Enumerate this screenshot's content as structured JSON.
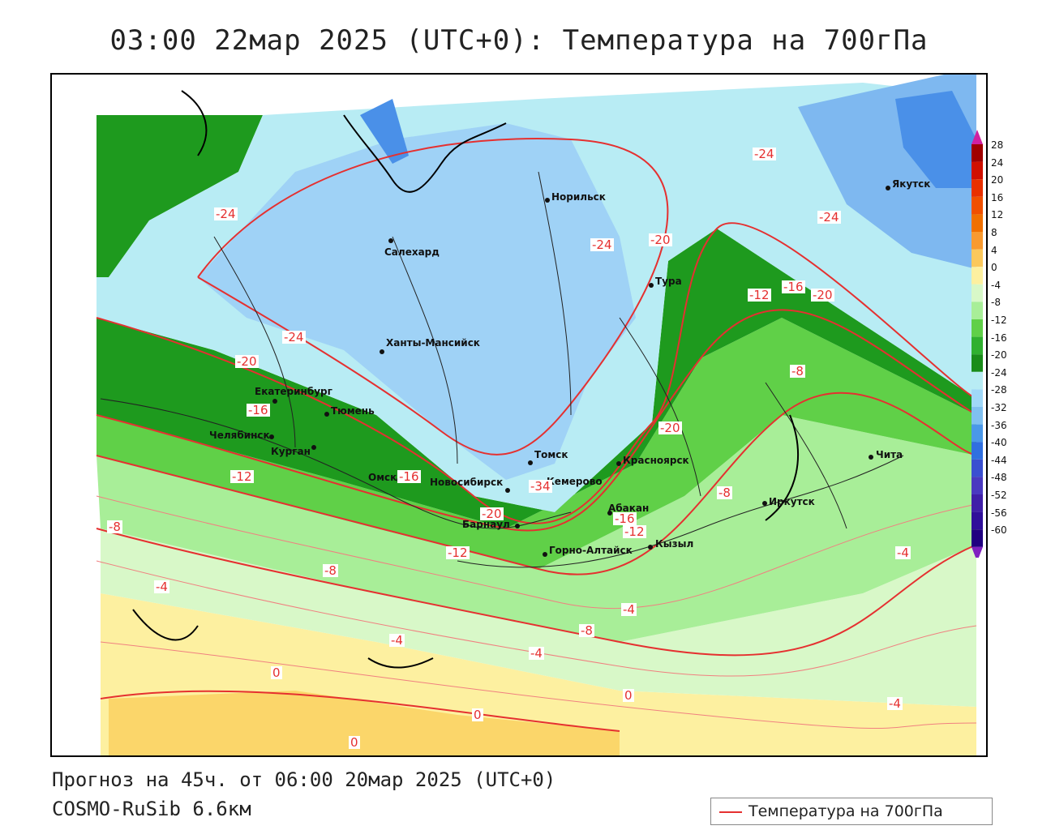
{
  "title": "03:00 22мар 2025 (UTC+0): Температура на 700гПа",
  "forecast_line": "Прогноз на 45ч. от 06:00 20мар 2025 (UTC+0)",
  "model_line": "COSMO-RuSib 6.6км",
  "legend": {
    "label": "Температура на 700гПа",
    "line_color": "#e53030"
  },
  "colorbar": {
    "labels": [
      "28",
      "24",
      "20",
      "16",
      "12",
      "8",
      "4",
      "0",
      "-4",
      "-8",
      "-12",
      "-16",
      "-20",
      "-24",
      "-28",
      "-32",
      "-36",
      "-40",
      "-44",
      "-48",
      "-52",
      "-56",
      "-60"
    ],
    "colors": [
      "#a00000",
      "#d01000",
      "#e83000",
      "#f05000",
      "#f07000",
      "#f89a30",
      "#fbc85c",
      "#fdf0a0",
      "#d8f8c8",
      "#a8ee98",
      "#60d048",
      "#30b030",
      "#1a8c1a",
      "#b8ecf4",
      "#a0d8f8",
      "#80c0f0",
      "#4a98e8",
      "#3070e0",
      "#3a50d0",
      "#4a3ac0",
      "#4020a8",
      "#30109a",
      "#200080"
    ]
  },
  "cities": [
    {
      "name": "Норильск"
    },
    {
      "name": "Салехард"
    },
    {
      "name": "Тура"
    },
    {
      "name": "Якутск"
    },
    {
      "name": "Ханты-Мансийск"
    },
    {
      "name": "Екатеринбург"
    },
    {
      "name": "Тюмень"
    },
    {
      "name": "Челябинск"
    },
    {
      "name": "Курган"
    },
    {
      "name": "Омск"
    },
    {
      "name": "Новосибирск"
    },
    {
      "name": "Томск"
    },
    {
      "name": "Кемерово"
    },
    {
      "name": "Красноярск"
    },
    {
      "name": "Барнаул"
    },
    {
      "name": "Абакан"
    },
    {
      "name": "Горно-Алтайск"
    },
    {
      "name": "Кызыл"
    },
    {
      "name": "Иркутск"
    },
    {
      "name": "Чита"
    }
  ],
  "contour_labels": [
    "-24",
    "-24",
    "-24",
    "-24",
    "-24",
    "-20",
    "-20",
    "-20",
    "-20",
    "-20",
    "-16",
    "-16",
    "-16",
    "-12",
    "-12",
    "-12",
    "-16",
    "-8",
    "-8",
    "-8",
    "-8",
    "-8",
    "-4",
    "-4",
    "-4",
    "-4",
    "-4",
    "-4",
    "0",
    "0",
    "0",
    "0",
    "-12",
    "-34"
  ]
}
